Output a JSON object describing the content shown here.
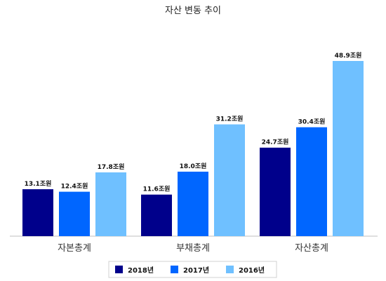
{
  "chart_data": {
    "type": "bar",
    "title": "자산 변동 추이",
    "categories": [
      "자본총계",
      "부채총계",
      "자산총계"
    ],
    "unit_suffix": "조원",
    "ylim": [
      0,
      55
    ],
    "grid": false,
    "legend_position": "bottom",
    "series": [
      {
        "name": "2018년",
        "color": "#00008B",
        "values": [
          13.1,
          11.6,
          24.7
        ],
        "labels": [
          "13.1조원",
          "11.6조원",
          "24.7조원"
        ]
      },
      {
        "name": "2017년",
        "color": "#0066FF",
        "values": [
          12.4,
          18.0,
          30.4
        ],
        "labels": [
          "12.4조원",
          "18.0조원",
          "30.4조원"
        ]
      },
      {
        "name": "2016년",
        "color": "#6FC0FF",
        "values": [
          17.8,
          31.2,
          48.9
        ],
        "labels": [
          "17.8조원",
          "31.2조원",
          "48.9조원"
        ]
      }
    ]
  }
}
